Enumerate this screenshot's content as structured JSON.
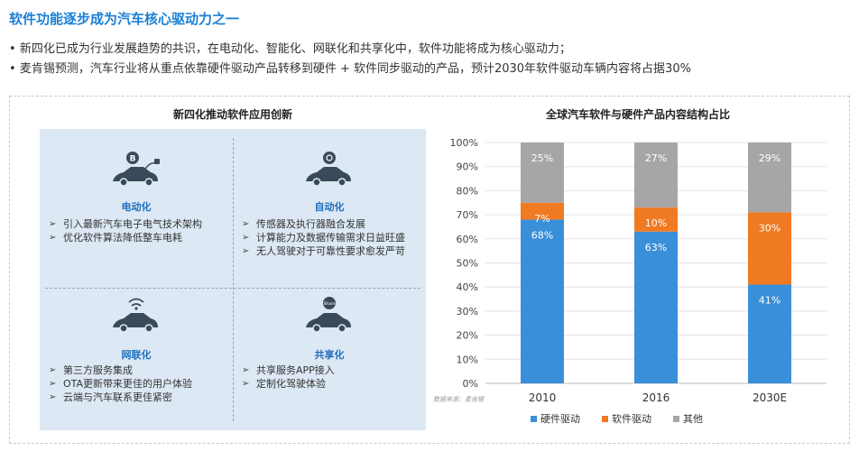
{
  "header": {
    "title": "软件功能逐步成为汽车核心驱动力之一",
    "bullets": [
      "新四化已成为行业发展趋势的共识，在电动化、智能化、网联化和共享化中，软件功能将成为核心驱动力；",
      "麦肯锡预测，汽车行业将从重点依靠硬件驱动产品转移到硬件 + 软件同步驱动的产品，预计2030年软件驱动车辆内容将占据30%"
    ]
  },
  "left_panel": {
    "title": "新四化推动软件应用创新",
    "quadrants": [
      {
        "title": "电动化",
        "icon": "electric-car-icon",
        "items": [
          "引入最新汽车电子电气技术架构",
          "优化软件算法降低整车电耗"
        ]
      },
      {
        "title": "自动化",
        "icon": "autonomous-car-icon",
        "items": [
          "传感器及执行器融合发展",
          "计算能力及数据传输需求日益旺盛",
          "无人驾驶对于可靠性要求愈发严苛"
        ]
      },
      {
        "title": "网联化",
        "icon": "connected-car-icon",
        "items": [
          "第三方服务集成",
          "OTA更新带来更佳的用户体验",
          "云端与汽车联系更佳紧密"
        ]
      },
      {
        "title": "共享化",
        "icon": "shared-car-icon",
        "items": [
          "共享服务APP接入",
          "定制化驾驶体验"
        ]
      }
    ],
    "share_badge": "Share"
  },
  "source_note": "数据来源：麦肯锡",
  "colors": {
    "hardware": "#3a8fd9",
    "software": "#f07a22",
    "other": "#a6a6a6",
    "accent": "#1a7fd4"
  },
  "chart_data": {
    "type": "bar",
    "stacked": true,
    "title": "全球汽车软件与硬件产品内容结构占比",
    "categories": [
      "2010",
      "2016",
      "2030E"
    ],
    "series": [
      {
        "name": "硬件驱动",
        "values": [
          68,
          63,
          41
        ],
        "labels": [
          "68%",
          "63%",
          "41%"
        ],
        "color": "#3a8fd9"
      },
      {
        "name": "软件驱动",
        "values": [
          7,
          10,
          30
        ],
        "labels": [
          "7%",
          "10%",
          "30%"
        ],
        "color": "#f07a22"
      },
      {
        "name": "其他",
        "values": [
          25,
          27,
          29
        ],
        "labels": [
          "25%",
          "27%",
          "29%"
        ],
        "color": "#a6a6a6"
      }
    ],
    "yticks": [
      "0%",
      "10%",
      "20%",
      "30%",
      "40%",
      "50%",
      "60%",
      "70%",
      "80%",
      "90%",
      "100%"
    ],
    "ylim": [
      0,
      100
    ],
    "grid": true,
    "legend": "bottom"
  }
}
